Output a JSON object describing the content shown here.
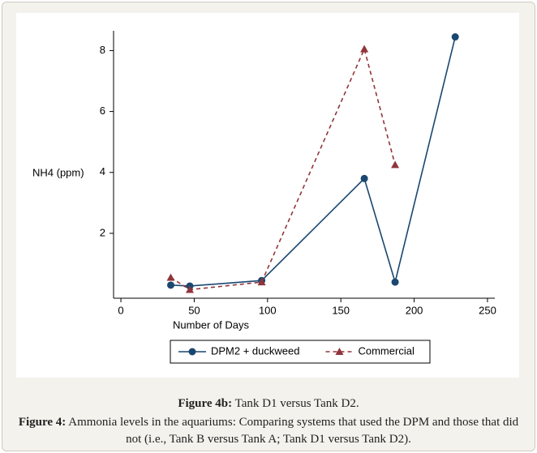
{
  "chart_data": {
    "type": "line",
    "x_label": "Number of Days",
    "y_label": "NH4 (ppm)",
    "x": [
      34,
      47,
      96,
      166,
      187,
      228
    ],
    "series": [
      {
        "name": "DPM2 + duckweed",
        "color": "#1a476f",
        "marker": "circle",
        "dashed": false,
        "values": [
          0.3,
          0.27,
          0.45,
          3.8,
          0.4,
          8.45
        ]
      },
      {
        "name": "Commercial",
        "color": "#90353b",
        "marker": "triangle",
        "dashed": true,
        "values": [
          0.55,
          0.15,
          0.4,
          8.05,
          4.25,
          null
        ]
      }
    ],
    "xlim": [
      -5,
      255
    ],
    "ylim": [
      -0.13,
      8.65
    ],
    "xticks": [
      0,
      50,
      100,
      150,
      200,
      250
    ],
    "yticks": [
      2,
      4,
      6,
      8
    ]
  },
  "caption": {
    "sub_label": "Figure 4b:",
    "sub_text": "Tank D1 versus Tank D2.",
    "label": "Figure 4:",
    "text": "Ammonia levels in the aquariums: Comparing systems that used the DPM and those that did not (i.e., Tank B versus Tank A; Tank D1 versus Tank D2)."
  }
}
